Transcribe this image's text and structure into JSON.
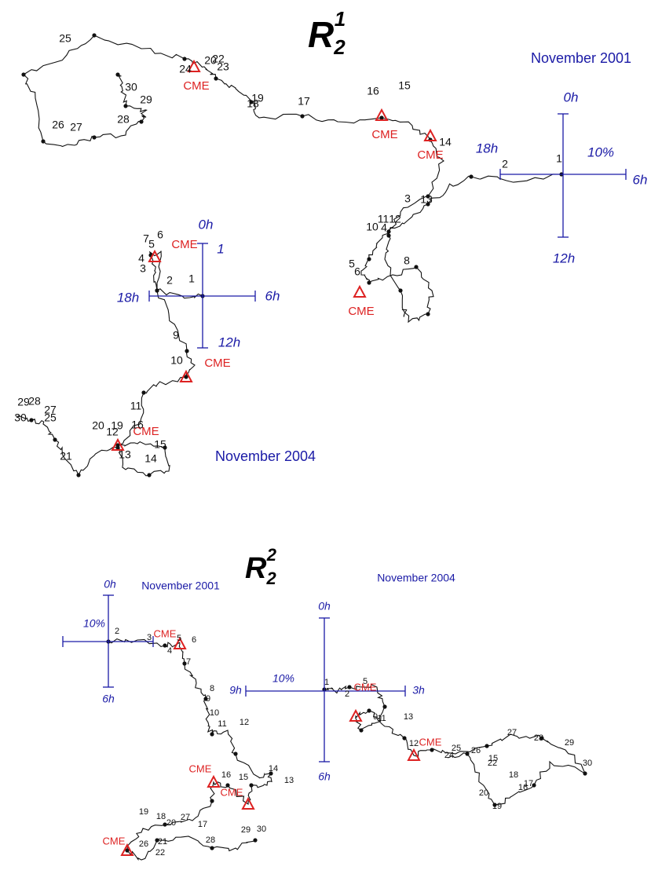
{
  "figures": [
    {
      "title": {
        "main": "R",
        "sub": "2",
        "sup": "1"
      },
      "plots": [
        {
          "label": "November 2001",
          "axis_labels": [
            "0h",
            "6h",
            "12h",
            "18h",
            "10%"
          ],
          "cme_labels": [
            "CME",
            "CME",
            "CME",
            "CME"
          ],
          "day_labels": [
            "1",
            "2",
            "3",
            "13",
            "11",
            "12",
            "10",
            "4",
            "5",
            "6",
            "8",
            "7",
            "14",
            "15",
            "16",
            "17",
            "19",
            "18",
            "20",
            "22",
            "23",
            "24",
            "25",
            "26",
            "27",
            "28",
            "29",
            "30"
          ]
        },
        {
          "label": "November 2004",
          "axis_labels": [
            "0h",
            "6h",
            "12h",
            "18h",
            "1"
          ],
          "cme_labels": [
            "CME",
            "CME",
            "CME"
          ],
          "day_labels": [
            "1",
            "2",
            "3",
            "4",
            "5",
            "6",
            "7",
            "9",
            "10",
            "11",
            "16",
            "12",
            "13",
            "14",
            "15",
            "20",
            "19",
            "29",
            "28",
            "27",
            "30",
            "25",
            "21"
          ]
        }
      ]
    },
    {
      "title": {
        "main": "R",
        "sub": "2",
        "sup": "2"
      },
      "plots": [
        {
          "label": "November 2001",
          "axis_labels": [
            "0h",
            "6h",
            "10%"
          ],
          "cme_labels": [
            "CME",
            "CME",
            "CME",
            "CME"
          ],
          "day_labels": [
            "2",
            "3",
            "4",
            "5",
            "6",
            "7",
            "8",
            "9",
            "10",
            "11",
            "12",
            "13",
            "14",
            "15",
            "16",
            "17",
            "18",
            "19",
            "20",
            "21",
            "22",
            "26",
            "27",
            "28",
            "29",
            "30"
          ]
        },
        {
          "label": "November 2004",
          "axis_labels": [
            "0h",
            "9h",
            "3h",
            "6h",
            "10%"
          ],
          "cme_labels": [
            "CME",
            "CME"
          ],
          "day_labels": [
            "1",
            "5",
            "2",
            "11",
            "9",
            "13",
            "12",
            "25",
            "24",
            "26",
            "15",
            "27",
            "28",
            "29",
            "30",
            "22",
            "18",
            "17",
            "16",
            "20",
            "19"
          ]
        }
      ]
    }
  ]
}
